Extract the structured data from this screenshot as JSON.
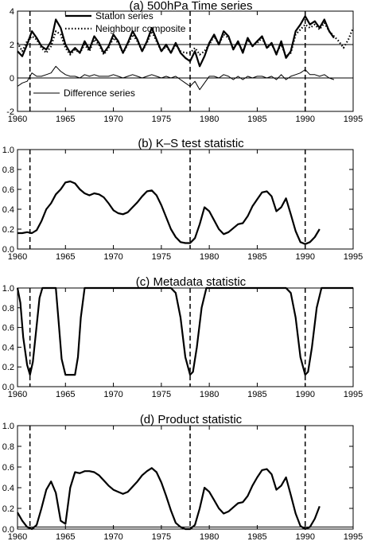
{
  "chart_data": [
    {
      "type": "line",
      "title": "(a) 500hPa Time series",
      "xlim": [
        1960,
        1995
      ],
      "ylim": [
        -2,
        4
      ],
      "xticks": [
        1960,
        1965,
        1970,
        1975,
        1980,
        1985,
        1990,
        1995
      ],
      "yticks": [
        -2,
        0,
        2,
        4
      ],
      "hlines": [
        0,
        2
      ],
      "vlines": [
        1961.3,
        1978,
        1990
      ],
      "legend": "top-center",
      "series": [
        {
          "name": "Station series",
          "style": "solid-thick",
          "x": [
            1960,
            1960.5,
            1961,
            1961.5,
            1962,
            1962.5,
            1963,
            1963.5,
            1964,
            1964.5,
            1965,
            1965.5,
            1966,
            1966.5,
            1967,
            1967.5,
            1968,
            1968.5,
            1969,
            1969.5,
            1970,
            1970.5,
            1971,
            1971.5,
            1972,
            1972.5,
            1973,
            1973.5,
            1974,
            1974.5,
            1975,
            1975.5,
            1976,
            1976.5,
            1977,
            1977.5,
            1978,
            1978.5,
            1979,
            1979.5,
            1980,
            1980.5,
            1981,
            1981.5,
            1982,
            1982.5,
            1983,
            1983.5,
            1984,
            1984.5,
            1985,
            1985.5,
            1986,
            1986.5,
            1987,
            1987.5,
            1988,
            1988.5,
            1989,
            1989.5,
            1990,
            1990.5,
            1991,
            1991.5,
            1992,
            1992.5,
            1993
          ],
          "values": [
            1.6,
            1.3,
            2.0,
            2.8,
            2.4,
            1.9,
            1.7,
            2.2,
            3.5,
            3.0,
            2.0,
            1.5,
            1.8,
            1.5,
            2.2,
            1.7,
            2.5,
            2.1,
            1.5,
            1.9,
            2.6,
            2.2,
            1.5,
            2.1,
            2.8,
            2.3,
            1.6,
            2.2,
            3.0,
            2.3,
            1.6,
            2.0,
            1.5,
            2.1,
            1.5,
            1.2,
            1.0,
            1.6,
            0.7,
            1.3,
            2.1,
            2.6,
            2.0,
            2.8,
            2.5,
            1.7,
            2.2,
            1.5,
            2.4,
            1.9,
            2.2,
            2.5,
            1.8,
            2.1,
            1.4,
            2.2,
            1.2,
            1.6,
            2.8,
            3.2,
            3.7,
            3.2,
            3.4,
            3.0,
            3.5,
            2.8,
            2.4
          ]
        },
        {
          "name": "Neighbour composite",
          "style": "dotted-thick",
          "x": [
            1960,
            1960.5,
            1961,
            1961.5,
            1962,
            1962.5,
            1963,
            1963.5,
            1964,
            1964.5,
            1965,
            1965.5,
            1966,
            1966.5,
            1967,
            1967.5,
            1968,
            1968.5,
            1969,
            1969.5,
            1970,
            1970.5,
            1971,
            1971.5,
            1972,
            1972.5,
            1973,
            1973.5,
            1974,
            1974.5,
            1975,
            1975.5,
            1976,
            1976.5,
            1977,
            1977.5,
            1978,
            1978.5,
            1979,
            1979.5,
            1980,
            1980.5,
            1981,
            1981.5,
            1982,
            1982.5,
            1983,
            1983.5,
            1984,
            1984.5,
            1985,
            1985.5,
            1986,
            1986.5,
            1987,
            1987.5,
            1988,
            1988.5,
            1989,
            1989.5,
            1990,
            1990.5,
            1991,
            1991.5,
            1992,
            1992.5,
            1993,
            1993.5,
            1994,
            1994.5,
            1995
          ],
          "values": [
            2.1,
            1.6,
            2.2,
            2.5,
            2.3,
            1.8,
            1.5,
            1.9,
            2.8,
            2.6,
            1.8,
            1.4,
            1.7,
            1.5,
            2.0,
            1.6,
            2.3,
            2.0,
            1.4,
            1.8,
            2.4,
            2.1,
            1.5,
            2.0,
            2.6,
            2.2,
            1.6,
            2.1,
            2.8,
            2.2,
            1.6,
            1.9,
            1.5,
            2.0,
            1.6,
            1.5,
            1.5,
            1.8,
            1.4,
            1.6,
            2.0,
            2.5,
            2.0,
            2.6,
            2.4,
            1.8,
            2.1,
            1.6,
            2.3,
            1.9,
            2.1,
            2.4,
            1.8,
            2.0,
            1.5,
            2.0,
            1.3,
            1.5,
            2.6,
            2.9,
            3.2,
            3.0,
            3.2,
            2.9,
            3.3,
            2.8,
            2.5,
            2.2,
            1.8,
            2.3,
            3.0
          ]
        },
        {
          "name": "Difference series",
          "style": "solid-thin",
          "x": [
            1960,
            1960.5,
            1961,
            1961.5,
            1962,
            1962.5,
            1963,
            1963.5,
            1964,
            1964.5,
            1965,
            1965.5,
            1966,
            1966.5,
            1967,
            1967.5,
            1968,
            1968.5,
            1969,
            1969.5,
            1970,
            1970.5,
            1971,
            1971.5,
            1972,
            1972.5,
            1973,
            1973.5,
            1974,
            1974.5,
            1975,
            1975.5,
            1976,
            1976.5,
            1977,
            1977.5,
            1978,
            1978.5,
            1979,
            1979.5,
            1980,
            1980.5,
            1981,
            1981.5,
            1982,
            1982.5,
            1983,
            1983.5,
            1984,
            1984.5,
            1985,
            1985.5,
            1986,
            1986.5,
            1987,
            1987.5,
            1988,
            1988.5,
            1989,
            1989.5,
            1990,
            1990.5,
            1991,
            1991.5,
            1992,
            1992.5,
            1993
          ],
          "values": [
            -0.5,
            -0.3,
            -0.2,
            0.3,
            0.1,
            0.1,
            0.2,
            0.3,
            0.7,
            0.4,
            0.2,
            0.1,
            0.1,
            0.0,
            0.2,
            0.1,
            0.2,
            0.1,
            0.1,
            0.1,
            0.2,
            0.1,
            0.0,
            0.1,
            0.2,
            0.1,
            0.0,
            0.1,
            0.2,
            0.1,
            0.0,
            0.1,
            0.0,
            0.1,
            -0.1,
            -0.3,
            -0.5,
            -0.2,
            -0.7,
            -0.3,
            0.1,
            0.1,
            0.0,
            0.2,
            0.1,
            -0.1,
            0.1,
            -0.1,
            0.1,
            0.0,
            0.1,
            0.1,
            0.0,
            0.1,
            -0.1,
            0.2,
            -0.1,
            0.1,
            0.2,
            0.3,
            0.5,
            0.2,
            0.2,
            0.1,
            0.2,
            0.0,
            -0.1
          ]
        }
      ]
    },
    {
      "type": "line",
      "title": "(b) K–S test statistic",
      "xlim": [
        1960,
        1995
      ],
      "ylim": [
        0,
        1
      ],
      "xticks": [
        1960,
        1965,
        1970,
        1975,
        1980,
        1985,
        1990,
        1995
      ],
      "yticks": [
        0.0,
        0.2,
        0.4,
        0.6,
        0.8,
        1.0
      ],
      "hlines": [],
      "vlines": [
        1961.3,
        1978,
        1990
      ],
      "series": [
        {
          "style": "solid-thick",
          "x": [
            1960,
            1960.5,
            1961,
            1961.5,
            1962,
            1962.5,
            1963,
            1963.5,
            1964,
            1964.5,
            1965,
            1965.5,
            1966,
            1966.5,
            1967,
            1967.5,
            1968,
            1968.5,
            1969,
            1969.5,
            1970,
            1970.5,
            1971,
            1971.5,
            1972,
            1972.5,
            1973,
            1973.5,
            1974,
            1974.5,
            1975,
            1975.5,
            1976,
            1976.5,
            1977,
            1977.5,
            1978,
            1978.5,
            1979,
            1979.5,
            1980,
            1980.5,
            1981,
            1981.5,
            1982,
            1982.5,
            1983,
            1983.5,
            1984,
            1984.5,
            1985,
            1985.5,
            1986,
            1986.5,
            1987,
            1987.5,
            1988,
            1988.5,
            1989,
            1989.5,
            1990,
            1990.5,
            1991,
            1991.5
          ],
          "values": [
            0.16,
            0.16,
            0.17,
            0.16,
            0.19,
            0.28,
            0.4,
            0.46,
            0.55,
            0.6,
            0.67,
            0.68,
            0.66,
            0.6,
            0.56,
            0.54,
            0.56,
            0.55,
            0.52,
            0.46,
            0.39,
            0.36,
            0.35,
            0.37,
            0.42,
            0.47,
            0.53,
            0.58,
            0.59,
            0.54,
            0.44,
            0.32,
            0.2,
            0.12,
            0.07,
            0.06,
            0.06,
            0.11,
            0.25,
            0.42,
            0.38,
            0.29,
            0.2,
            0.15,
            0.17,
            0.21,
            0.25,
            0.26,
            0.33,
            0.43,
            0.5,
            0.57,
            0.58,
            0.53,
            0.38,
            0.42,
            0.51,
            0.35,
            0.18,
            0.07,
            0.05,
            0.07,
            0.12,
            0.2
          ]
        }
      ]
    },
    {
      "type": "line",
      "title": "(c) Metadata statistic",
      "xlim": [
        1960,
        1995
      ],
      "ylim": [
        0,
        1
      ],
      "xticks": [
        1960,
        1965,
        1970,
        1975,
        1980,
        1985,
        1990,
        1995
      ],
      "yticks": [
        0.0,
        0.2,
        0.4,
        0.6,
        0.8,
        1.0
      ],
      "hlines": [],
      "vlines": [
        1961.3,
        1978,
        1990
      ],
      "series": [
        {
          "style": "solid-thick",
          "x": [
            1960,
            1960.3,
            1960.6,
            1961,
            1961.3,
            1961.6,
            1962,
            1962.3,
            1962.6,
            1963,
            1963.5,
            1964,
            1964.3,
            1964.6,
            1965,
            1965.5,
            1966,
            1966.3,
            1966.6,
            1967,
            1967.5,
            1970,
            1975,
            1976,
            1976.5,
            1977,
            1977.5,
            1978,
            1978.3,
            1978.7,
            1979.2,
            1979.7,
            1980,
            1985,
            1988,
            1988.5,
            1989,
            1989.5,
            1990,
            1990.3,
            1990.7,
            1991.2,
            1991.7,
            1992,
            1995
          ],
          "values": [
            1.0,
            0.85,
            0.5,
            0.22,
            0.12,
            0.25,
            0.62,
            0.9,
            1.0,
            1.0,
            1.0,
            1.0,
            0.65,
            0.28,
            0.12,
            0.12,
            0.12,
            0.3,
            0.7,
            1.0,
            1.0,
            1.0,
            1.0,
            1.0,
            0.95,
            0.7,
            0.3,
            0.12,
            0.15,
            0.4,
            0.8,
            1.0,
            1.0,
            1.0,
            1.0,
            0.95,
            0.7,
            0.3,
            0.12,
            0.15,
            0.4,
            0.8,
            1.0,
            1.0,
            1.0
          ]
        }
      ]
    },
    {
      "type": "line",
      "title": "(d) Product statistic",
      "xlim": [
        1960,
        1995
      ],
      "ylim": [
        0,
        1
      ],
      "xticks": [
        1960,
        1965,
        1970,
        1975,
        1980,
        1985,
        1990,
        1995
      ],
      "yticks": [
        0.0,
        0.2,
        0.4,
        0.6,
        0.8,
        1.0
      ],
      "hlines": [
        0.02
      ],
      "vlines": [
        1961.3,
        1978,
        1990
      ],
      "series": [
        {
          "style": "solid-thick",
          "x": [
            1960,
            1960.5,
            1961,
            1961.5,
            1962,
            1962.5,
            1963,
            1963.5,
            1964,
            1964.5,
            1965,
            1965.5,
            1966,
            1966.5,
            1967,
            1967.5,
            1968,
            1968.5,
            1969,
            1969.5,
            1970,
            1970.5,
            1971,
            1971.5,
            1972,
            1972.5,
            1973,
            1973.5,
            1974,
            1974.5,
            1975,
            1975.5,
            1976,
            1976.5,
            1977,
            1977.5,
            1978,
            1978.5,
            1979,
            1979.5,
            1980,
            1980.5,
            1981,
            1981.5,
            1982,
            1982.5,
            1983,
            1983.5,
            1984,
            1984.5,
            1985,
            1985.5,
            1986,
            1986.5,
            1987,
            1987.5,
            1988,
            1988.5,
            1989,
            1989.5,
            1990,
            1990.5,
            1991,
            1991.5
          ],
          "values": [
            0.16,
            0.08,
            0.02,
            0.0,
            0.04,
            0.2,
            0.38,
            0.46,
            0.35,
            0.08,
            0.05,
            0.4,
            0.55,
            0.54,
            0.56,
            0.56,
            0.55,
            0.52,
            0.47,
            0.42,
            0.38,
            0.36,
            0.34,
            0.36,
            0.41,
            0.46,
            0.52,
            0.56,
            0.59,
            0.55,
            0.45,
            0.32,
            0.18,
            0.06,
            0.02,
            0.0,
            0.0,
            0.04,
            0.2,
            0.4,
            0.36,
            0.28,
            0.2,
            0.15,
            0.17,
            0.21,
            0.25,
            0.26,
            0.32,
            0.42,
            0.5,
            0.57,
            0.58,
            0.53,
            0.38,
            0.42,
            0.5,
            0.33,
            0.15,
            0.03,
            0.0,
            0.02,
            0.1,
            0.22
          ]
        }
      ]
    }
  ]
}
